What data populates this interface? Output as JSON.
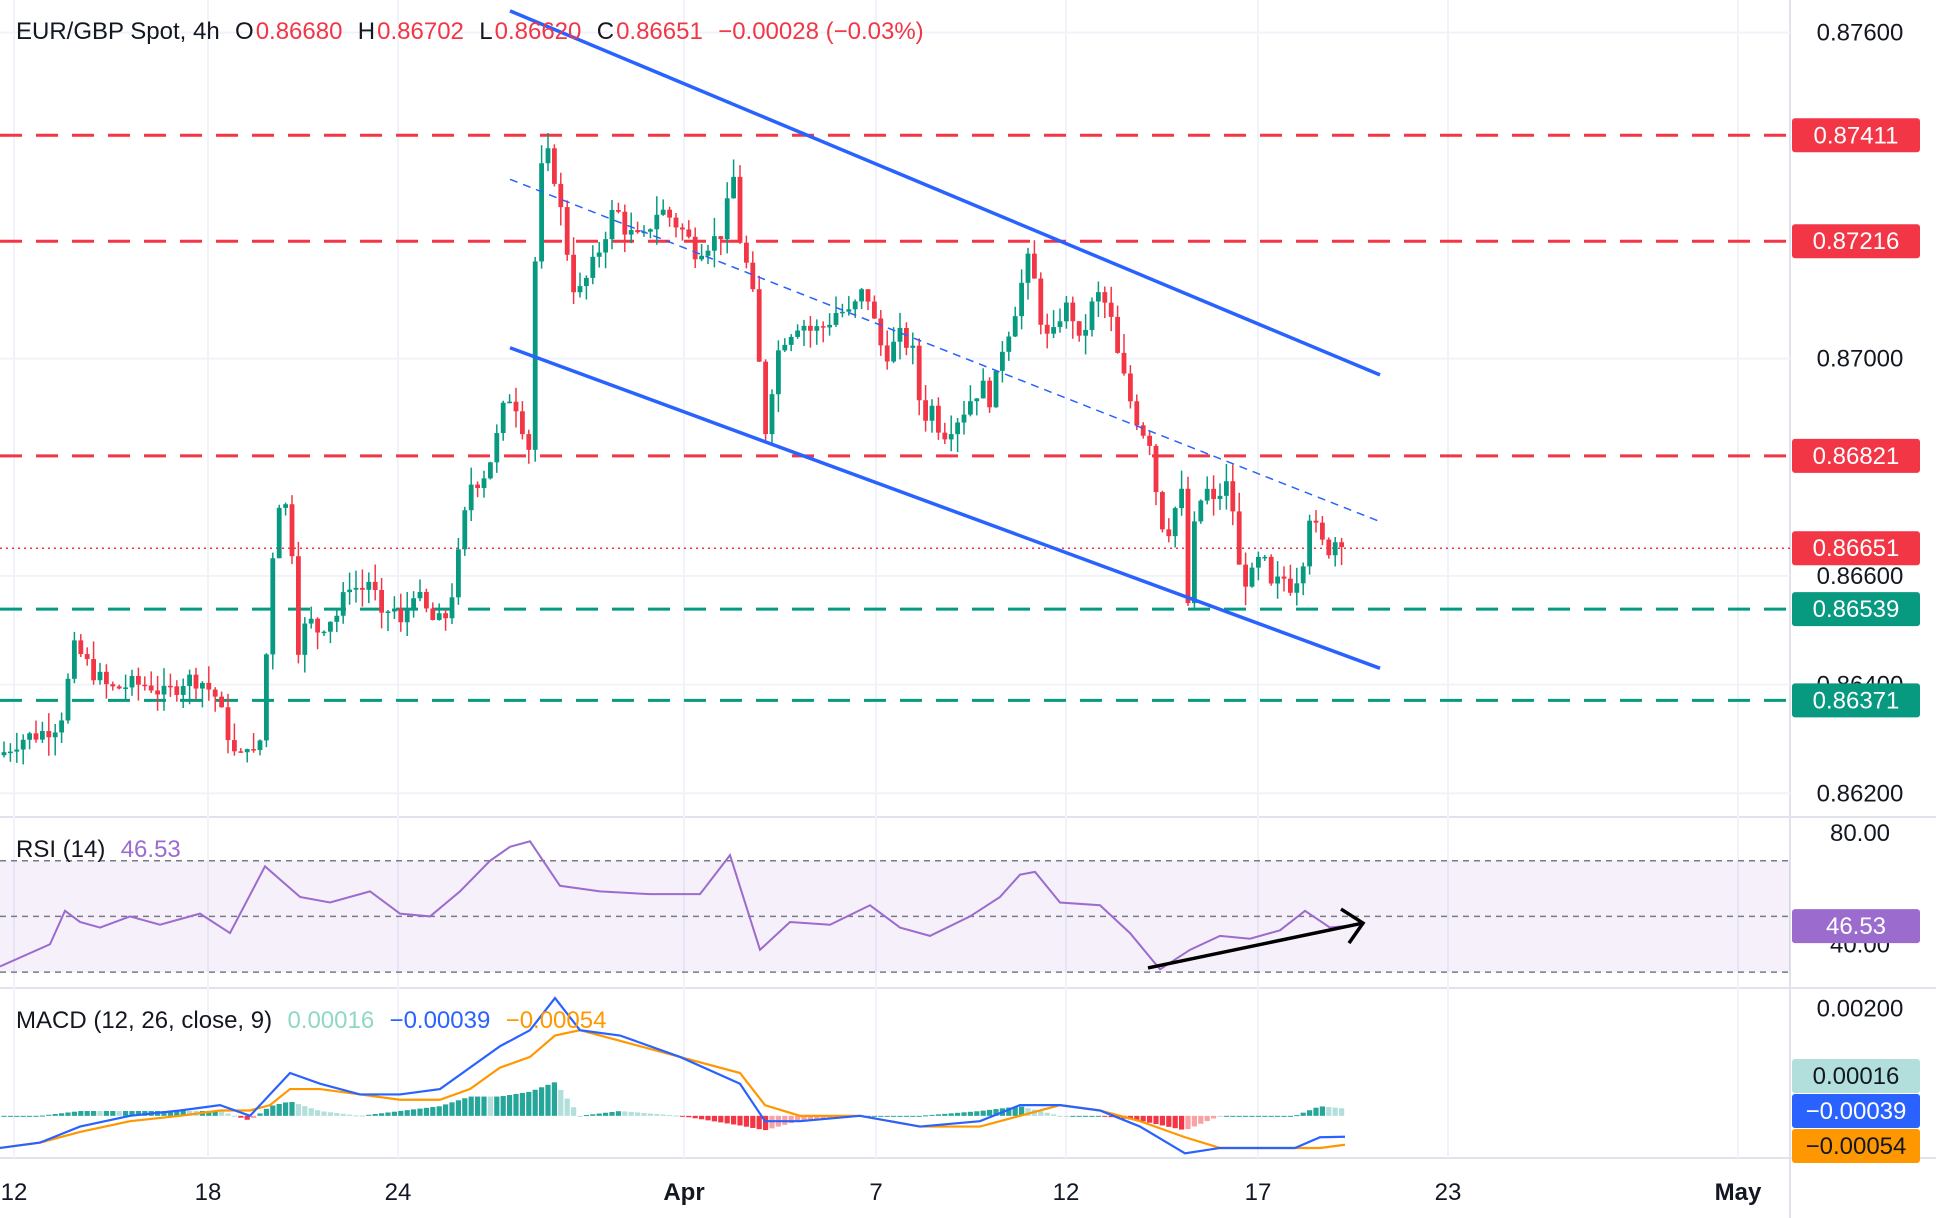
{
  "header": {
    "symbol": "EUR/GBP Spot, 4h",
    "open_label": "O",
    "open": "0.86680",
    "high_label": "H",
    "high": "0.86702",
    "low_label": "L",
    "low": "0.86620",
    "close_label": "C",
    "close": "0.86651",
    "change": "−0.00028 (−0.03%)"
  },
  "rsi_header": {
    "label": "RSI (14)",
    "value": "46.53"
  },
  "macd_header": {
    "label": "MACD (12, 26, close, 9)",
    "hist": "0.00016",
    "macd": "−0.00039",
    "signal": "−0.00054"
  },
  "colors": {
    "up": "#089981",
    "down": "#f23645",
    "channel": "#2962ff",
    "resistance": "#f23645",
    "support": "#089981",
    "rsi": "#9c6bce",
    "macd": "#2962ff",
    "signal": "#ff9800",
    "hist_up": "#26a69a",
    "hist_down": "#f23645"
  },
  "chart_data": [
    {
      "type": "candlestick",
      "title": "EUR/GBP Spot, 4h",
      "x_ticks": [
        "12",
        "18",
        "24",
        "Apr",
        "7",
        "12",
        "17",
        "23",
        "May"
      ],
      "y_ticks": [
        "0.87600",
        "0.87000",
        "0.86600",
        "0.86400",
        "0.86200"
      ],
      "ylim": [
        0.8616,
        0.8766
      ],
      "price_tags": [
        {
          "label": "0.87411",
          "value": 0.87411,
          "kind": "resistance"
        },
        {
          "label": "0.87216",
          "value": 0.87216,
          "kind": "resistance"
        },
        {
          "label": "0.86821",
          "value": 0.86821,
          "kind": "resistance"
        },
        {
          "label": "0.86651",
          "value": 0.86651,
          "kind": "last"
        },
        {
          "label": "0.86539",
          "value": 0.86539,
          "kind": "support"
        },
        {
          "label": "0.86371",
          "value": 0.86371,
          "kind": "support"
        }
      ],
      "close_path": [
        [
          0,
          0.8627
        ],
        [
          20,
          0.863
        ],
        [
          40,
          0.8631
        ],
        [
          60,
          0.8633
        ],
        [
          75,
          0.8647
        ],
        [
          90,
          0.8643
        ],
        [
          110,
          0.8639
        ],
        [
          130,
          0.864
        ],
        [
          150,
          0.864
        ],
        [
          165,
          0.8638
        ],
        [
          185,
          0.8641
        ],
        [
          200,
          0.8641
        ],
        [
          215,
          0.8638
        ],
        [
          228,
          0.8631
        ],
        [
          238,
          0.8625
        ],
        [
          248,
          0.863
        ],
        [
          255,
          0.8626
        ],
        [
          263,
          0.8632
        ],
        [
          270,
          0.866
        ],
        [
          280,
          0.8675
        ],
        [
          290,
          0.8671
        ],
        [
          298,
          0.8647
        ],
        [
          308,
          0.8652
        ],
        [
          318,
          0.865
        ],
        [
          328,
          0.8652
        ],
        [
          338,
          0.8653
        ],
        [
          350,
          0.8659
        ],
        [
          360,
          0.8657
        ],
        [
          372,
          0.866
        ],
        [
          380,
          0.8651
        ],
        [
          392,
          0.8655
        ],
        [
          402,
          0.865
        ],
        [
          412,
          0.8658
        ],
        [
          424,
          0.8654
        ],
        [
          436,
          0.8651
        ],
        [
          448,
          0.8653
        ],
        [
          458,
          0.8663
        ],
        [
          470,
          0.8677
        ],
        [
          482,
          0.8678
        ],
        [
          494,
          0.8683
        ],
        [
          502,
          0.869
        ],
        [
          512,
          0.8694
        ],
        [
          522,
          0.8688
        ],
        [
          530,
          0.8683
        ],
        [
          537,
          0.873
        ],
        [
          545,
          0.8738
        ],
        [
          552,
          0.8736
        ],
        [
          560,
          0.8728
        ],
        [
          568,
          0.8719
        ],
        [
          576,
          0.8711
        ],
        [
          585,
          0.8714
        ],
        [
          595,
          0.8718
        ],
        [
          605,
          0.8723
        ],
        [
          615,
          0.8728
        ],
        [
          625,
          0.8724
        ],
        [
          635,
          0.8722
        ],
        [
          645,
          0.8722
        ],
        [
          655,
          0.8727
        ],
        [
          665,
          0.8727
        ],
        [
          675,
          0.8725
        ],
        [
          685,
          0.8723
        ],
        [
          695,
          0.872
        ],
        [
          705,
          0.8721
        ],
        [
          715,
          0.8722
        ],
        [
          725,
          0.8724
        ],
        [
          732,
          0.8736
        ],
        [
          740,
          0.8722
        ],
        [
          748,
          0.8716
        ],
        [
          756,
          0.8708
        ],
        [
          764,
          0.8685
        ],
        [
          772,
          0.8695
        ],
        [
          780,
          0.8703
        ],
        [
          790,
          0.8705
        ],
        [
          800,
          0.8707
        ],
        [
          812,
          0.8705
        ],
        [
          825,
          0.8706
        ],
        [
          838,
          0.8709
        ],
        [
          850,
          0.8708
        ],
        [
          862,
          0.8712
        ],
        [
          870,
          0.8711
        ],
        [
          878,
          0.8703
        ],
        [
          888,
          0.8701
        ],
        [
          900,
          0.8704
        ],
        [
          912,
          0.8702
        ],
        [
          922,
          0.8689
        ],
        [
          932,
          0.8691
        ],
        [
          942,
          0.8686
        ],
        [
          952,
          0.8688
        ],
        [
          962,
          0.869
        ],
        [
          972,
          0.8693
        ],
        [
          982,
          0.8695
        ],
        [
          992,
          0.8692
        ],
        [
          1002,
          0.8702
        ],
        [
          1012,
          0.8707
        ],
        [
          1022,
          0.8714
        ],
        [
          1030,
          0.8719
        ],
        [
          1040,
          0.8708
        ],
        [
          1050,
          0.8702
        ],
        [
          1060,
          0.8708
        ],
        [
          1070,
          0.871
        ],
        [
          1080,
          0.8702
        ],
        [
          1090,
          0.8709
        ],
        [
          1100,
          0.8712
        ],
        [
          1110,
          0.8708
        ],
        [
          1118,
          0.87
        ],
        [
          1126,
          0.8695
        ],
        [
          1134,
          0.869
        ],
        [
          1142,
          0.8687
        ],
        [
          1150,
          0.8685
        ],
        [
          1158,
          0.8673
        ],
        [
          1166,
          0.8667
        ],
        [
          1174,
          0.8672
        ],
        [
          1182,
          0.8675
        ],
        [
          1188,
          0.8655
        ],
        [
          1196,
          0.8672
        ],
        [
          1206,
          0.8676
        ],
        [
          1214,
          0.8673
        ],
        [
          1222,
          0.8676
        ],
        [
          1230,
          0.8677
        ],
        [
          1240,
          0.866
        ],
        [
          1250,
          0.8659
        ],
        [
          1262,
          0.8664
        ],
        [
          1272,
          0.8657
        ],
        [
          1282,
          0.866
        ],
        [
          1292,
          0.8658
        ],
        [
          1302,
          0.8662
        ],
        [
          1310,
          0.8672
        ],
        [
          1320,
          0.8666
        ],
        [
          1330,
          0.8665
        ],
        [
          1340,
          0.8668
        ],
        [
          1345,
          0.8665
        ]
      ],
      "channel_upper": [
        [
          510,
          0.8764
        ],
        [
          1380,
          0.8697
        ]
      ],
      "channel_lower": [
        [
          510,
          0.8702
        ],
        [
          1380,
          0.8643
        ]
      ],
      "channel_mid": [
        [
          510,
          0.8733
        ],
        [
          1380,
          0.867
        ]
      ]
    },
    {
      "type": "line",
      "title": "RSI (14)",
      "y_ticks": [
        "80.00",
        "40.00"
      ],
      "ylim": [
        25,
        85
      ],
      "levels": [
        70,
        50,
        30
      ],
      "value": 46.53,
      "value_label": "46.53",
      "x": [
        0,
        50,
        65,
        80,
        100,
        130,
        160,
        200,
        230,
        265,
        300,
        330,
        370,
        400,
        430,
        460,
        490,
        510,
        530,
        560,
        600,
        650,
        700,
        730,
        760,
        790,
        830,
        870,
        900,
        930,
        970,
        1000,
        1020,
        1035,
        1060,
        1100,
        1130,
        1160,
        1190,
        1220,
        1250,
        1280,
        1305,
        1330,
        1345
      ],
      "values": [
        32,
        40,
        52,
        48,
        46,
        50,
        47,
        51,
        44,
        68,
        57,
        55,
        59,
        51,
        50,
        59,
        70,
        75,
        77,
        61,
        59,
        58,
        58,
        72,
        38,
        48,
        47,
        54,
        46,
        43,
        50,
        57,
        65,
        66,
        55,
        54,
        44,
        31,
        38,
        43,
        42,
        45,
        52,
        46,
        46.53
      ],
      "divergence_arrow": [
        [
          1148,
          31.5
        ],
        [
          1345,
          46.53
        ]
      ]
    },
    {
      "type": "bar",
      "title": "MACD (12, 26, close, 9)",
      "y_ticks": [
        "0.00200"
      ],
      "ylim": [
        -0.00075,
        0.00235
      ],
      "tags": [
        {
          "label": "0.00016",
          "value": 0.00016,
          "kind": "hist"
        },
        {
          "label": "−0.00039",
          "value": -0.00039,
          "kind": "macd"
        },
        {
          "label": "−0.00054",
          "value": -0.00054,
          "kind": "signal"
        }
      ],
      "x": [
        0,
        40,
        80,
        130,
        180,
        220,
        250,
        270,
        290,
        320,
        360,
        400,
        440,
        470,
        500,
        530,
        555,
        580,
        620,
        680,
        740,
        765,
        800,
        860,
        920,
        980,
        1020,
        1060,
        1100,
        1140,
        1185,
        1220,
        1260,
        1295,
        1320,
        1345
      ],
      "macd": [
        -0.0006,
        -0.0005,
        -0.0002,
        0.0,
        0.0001,
        0.0002,
        0.0,
        0.0004,
        0.0008,
        0.0006,
        0.0004,
        0.0004,
        0.0005,
        0.0009,
        0.0013,
        0.0016,
        0.0022,
        0.0016,
        0.0015,
        0.0011,
        0.0006,
        -0.0001,
        -0.0001,
        0.0,
        -0.0002,
        -0.0001,
        0.0002,
        0.0002,
        0.0001,
        -0.0002,
        -0.0007,
        -0.0006,
        -0.0006,
        -0.0006,
        -0.0004,
        -0.00039
      ],
      "signal": [
        -0.0006,
        -0.0005,
        -0.0003,
        -0.0001,
        0.0,
        0.0001,
        0.0001,
        0.0002,
        0.0005,
        0.0005,
        0.0004,
        0.0003,
        0.0003,
        0.0005,
        0.0009,
        0.0011,
        0.0015,
        0.0016,
        0.0014,
        0.0011,
        0.0008,
        0.0002,
        0.0,
        0.0,
        -0.0002,
        -0.0002,
        0.0,
        0.0002,
        0.0001,
        -0.0001,
        -0.0004,
        -0.0006,
        -0.0006,
        -0.0006,
        -0.0006,
        -0.00054
      ],
      "hist_last": 0.00016
    }
  ]
}
